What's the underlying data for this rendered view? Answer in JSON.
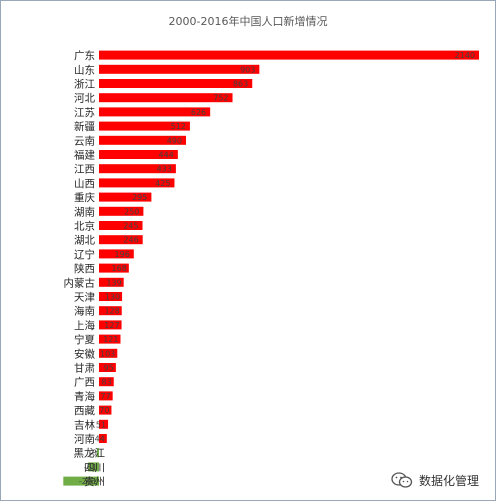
{
  "chart_data": {
    "type": "bar",
    "orientation": "horizontal",
    "title": "2000-2016年中国人口新增情况",
    "categories": [
      "广东",
      "山东",
      "浙江",
      "河北",
      "江苏",
      "新疆",
      "云南",
      "福建",
      "江西",
      "山西",
      "重庆",
      "湖南",
      "北京",
      "湖北",
      "辽宁",
      "陕西",
      "内蒙古",
      "天津",
      "海南",
      "上海",
      "宁夏",
      "安徽",
      "甘肃",
      "广西",
      "青海",
      "西藏",
      "吉林",
      "河南",
      "黑龙江",
      "四川",
      "贵州"
    ],
    "values": [
      2140,
      903,
      863,
      752,
      626,
      512,
      490,
      444,
      433,
      425,
      295,
      250,
      245,
      246,
      196,
      168,
      139,
      130,
      128,
      127,
      121,
      103,
      95,
      83,
      77,
      70,
      51,
      44,
      -8,
      -61,
      -201
    ],
    "value_labels": [
      "2140",
      "903",
      "863",
      "752",
      "626",
      "512",
      "490",
      "444",
      "433",
      "425",
      "295",
      "250",
      "245",
      "246",
      "196",
      "168",
      "139",
      "130",
      "128",
      "127",
      "121",
      "103",
      "95",
      "83",
      "77",
      "70",
      "51",
      "44",
      "-8",
      "-61",
      "-201"
    ],
    "colors": {
      "positive": "#ff0000",
      "negative": "#70ad47"
    },
    "grid": false,
    "legend": "none"
  },
  "watermark": {
    "icon": "wechat-official-account-icon",
    "text": "数据化管理"
  }
}
